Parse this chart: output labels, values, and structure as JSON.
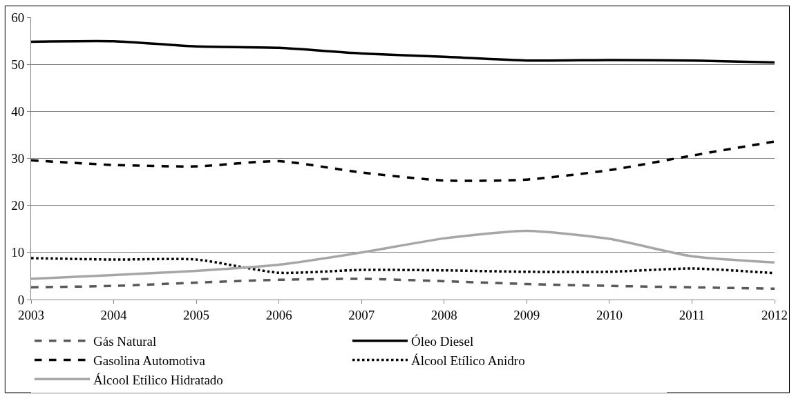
{
  "chart_data": {
    "type": "line",
    "x": [
      2003,
      2004,
      2005,
      2006,
      2007,
      2008,
      2009,
      2010,
      2011,
      2012
    ],
    "xlim": [
      2003,
      2012
    ],
    "xticks": [
      2003,
      2004,
      2005,
      2006,
      2007,
      2008,
      2009,
      2010,
      2011,
      2012
    ],
    "ylim": [
      0,
      60
    ],
    "yticks": [
      0,
      10,
      20,
      30,
      40,
      50,
      60
    ],
    "grid": "y",
    "legend": "bottom",
    "marker": "none",
    "series": [
      {
        "name": "Gás Natural",
        "color": "#595959",
        "line_style": "dashed",
        "values": [
          2.6,
          2.9,
          3.6,
          4.2,
          4.4,
          3.9,
          3.3,
          2.9,
          2.6,
          2.3
        ]
      },
      {
        "name": "Óleo Diesel",
        "color": "#000000",
        "line_style": "solid",
        "values": [
          54.8,
          54.9,
          53.8,
          53.5,
          52.3,
          51.6,
          50.8,
          50.9,
          50.8,
          50.4
        ]
      },
      {
        "name": "Gasolina Automotiva",
        "color": "#000000",
        "line_style": "dashed",
        "values": [
          29.6,
          28.6,
          28.3,
          29.4,
          27.0,
          25.3,
          25.5,
          27.5,
          30.6,
          33.6
        ]
      },
      {
        "name": "Álcool Etílico Anidro",
        "color": "#000000",
        "line_style": "dotted",
        "values": [
          8.8,
          8.5,
          8.5,
          5.7,
          6.3,
          6.2,
          5.9,
          5.9,
          6.6,
          5.6
        ]
      },
      {
        "name": "Álcool Etílico Hidratado",
        "color": "#a6a6a6",
        "line_style": "solid",
        "values": [
          4.4,
          5.2,
          6.1,
          7.4,
          10.0,
          13.0,
          14.6,
          12.9,
          9.2,
          7.9
        ]
      }
    ]
  }
}
